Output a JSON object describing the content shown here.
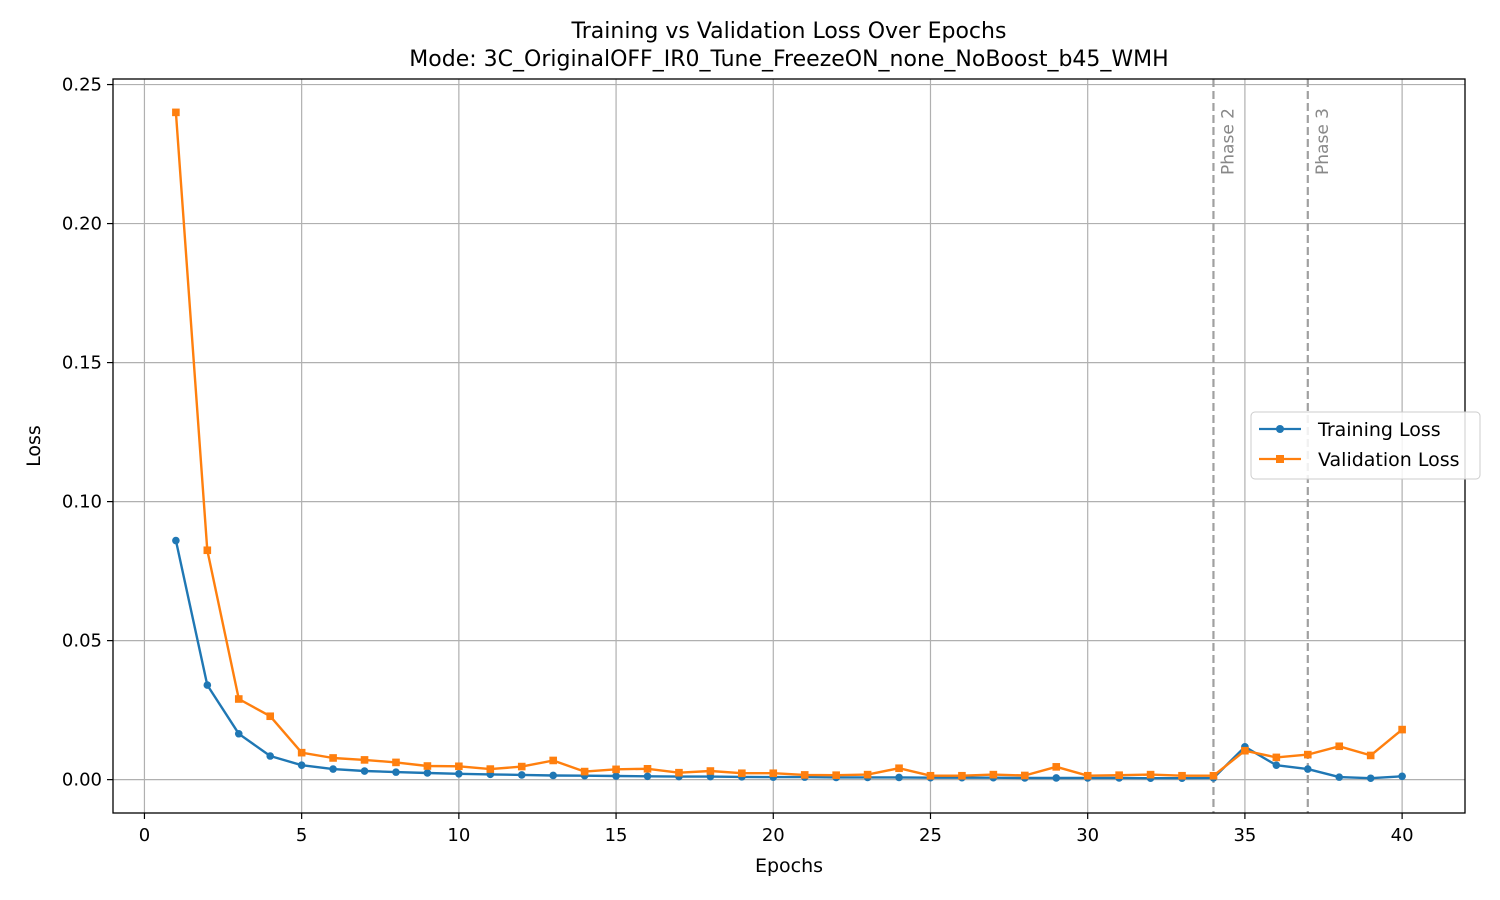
{
  "chart_data": {
    "type": "line",
    "title": "Training vs Validation Loss Over Epochs",
    "subtitle": "Mode: 3C_OriginalOFF_IR0_Tune_FreezeON_none_NoBoost_b45_WMH",
    "xlabel": "Epochs",
    "ylabel": "Loss",
    "xlim": [
      -1,
      42
    ],
    "ylim": [
      -0.012,
      0.252
    ],
    "xticks": [
      0,
      5,
      10,
      15,
      20,
      25,
      30,
      35,
      40
    ],
    "yticks": [
      0.0,
      0.05,
      0.1,
      0.15,
      0.2,
      0.25
    ],
    "ytick_labels": [
      "0.00",
      "0.05",
      "0.10",
      "0.15",
      "0.20",
      "0.25"
    ],
    "grid": true,
    "legend_position": "center-right",
    "x": [
      1,
      2,
      3,
      4,
      5,
      6,
      7,
      8,
      9,
      10,
      11,
      12,
      13,
      14,
      15,
      16,
      17,
      18,
      19,
      20,
      21,
      22,
      23,
      24,
      25,
      26,
      27,
      28,
      29,
      30,
      31,
      32,
      33,
      34,
      35,
      36,
      37,
      38,
      39,
      40
    ],
    "series": [
      {
        "name": "Training Loss",
        "color": "#1f77b4",
        "marker": "circle",
        "values": [
          0.086,
          0.034,
          0.0165,
          0.0085,
          0.0052,
          0.0038,
          0.0031,
          0.0027,
          0.0024,
          0.0021,
          0.0019,
          0.0017,
          0.0015,
          0.0014,
          0.0013,
          0.0012,
          0.0011,
          0.0011,
          0.001,
          0.0009,
          0.0009,
          0.0008,
          0.0008,
          0.0008,
          0.0007,
          0.0007,
          0.0007,
          0.0006,
          0.0006,
          0.0006,
          0.0006,
          0.0005,
          0.0005,
          0.0006,
          0.0118,
          0.0052,
          0.0038,
          0.0009,
          0.0005,
          0.0012
        ]
      },
      {
        "name": "Validation Loss",
        "color": "#ff7f0e",
        "marker": "square",
        "values": [
          0.24,
          0.0825,
          0.029,
          0.0228,
          0.0097,
          0.0078,
          0.0071,
          0.0062,
          0.0049,
          0.0048,
          0.0038,
          0.0047,
          0.0069,
          0.0029,
          0.0037,
          0.0039,
          0.0025,
          0.0031,
          0.0023,
          0.0023,
          0.0017,
          0.0016,
          0.0018,
          0.0041,
          0.0014,
          0.0014,
          0.0018,
          0.0015,
          0.0046,
          0.0014,
          0.0016,
          0.0018,
          0.0014,
          0.0014,
          0.0104,
          0.008,
          0.009,
          0.012,
          0.0087,
          0.018
        ]
      }
    ],
    "annotations": [
      {
        "x": 34,
        "label": "Phase 2",
        "style": "dashed-vertical"
      },
      {
        "x": 37,
        "label": "Phase 3",
        "style": "dashed-vertical"
      }
    ]
  }
}
